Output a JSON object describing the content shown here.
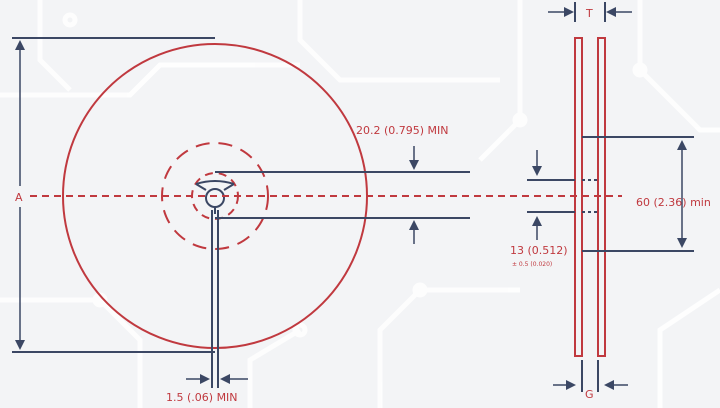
{
  "colors": {
    "background": "#f3f4f6",
    "red": "#c0393f",
    "navy": "#3b4764",
    "circuit": "#ffffff"
  },
  "labels": {
    "a": "A",
    "min_202": "20.2 (0.795) MIN",
    "thickness_t": "T",
    "hub_60": "60 (2.36) min",
    "arbor_13": "13 (0.512)",
    "tol_05": "± 0.5 (0.020)",
    "slot_15": "1.5 (.06) MIN",
    "gap_g": "G"
  }
}
